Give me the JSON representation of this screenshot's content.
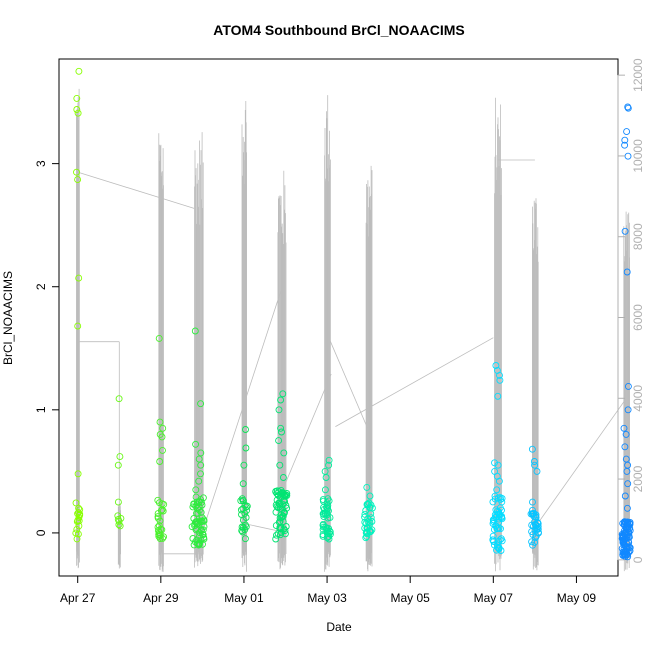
{
  "chart_data": {
    "type": "scatter",
    "title": "ATOM4 Southbound BrCl_NOAACIMS",
    "xlabel": "Date",
    "ylabel": "BrCl_NOAACIMS",
    "x_ticks": [
      {
        "day": 0,
        "label": "Apr 27"
      },
      {
        "day": 2,
        "label": "Apr 29"
      },
      {
        "day": 4,
        "label": "May 01"
      },
      {
        "day": 6,
        "label": "May 03"
      },
      {
        "day": 8,
        "label": "May 05"
      },
      {
        "day": 10,
        "label": "May 07"
      },
      {
        "day": 12,
        "label": "May 09"
      }
    ],
    "x_range_days": [
      -0.45,
      13.0
    ],
    "y_left_ticks": [
      0,
      1,
      2,
      3
    ],
    "y_left_range": [
      -0.35,
      3.85
    ],
    "y_right_ticks": [
      0,
      2000,
      4000,
      6000,
      8000,
      10000,
      12000
    ],
    "y_right_range": [
      -400,
      12400
    ],
    "right_axis_series": "altitude trace (grey)",
    "point_color_gradient": [
      "#88ff00",
      "#00e060",
      "#00ffff",
      "#1188ff"
    ],
    "clusters": [
      {
        "day": 0.0,
        "spread": 0.05,
        "n": 16,
        "low": -0.05,
        "high": 0.25,
        "extra": [
          0.48,
          1.68,
          2.07,
          2.87,
          2.93,
          3.41,
          3.44,
          3.53,
          3.75
        ],
        "alt_peak": 12000
      },
      {
        "day": 1.0,
        "spread": 0.04,
        "n": 6,
        "low": 0.0,
        "high": 0.15,
        "extra": [
          0.25,
          0.55,
          0.62,
          1.09
        ],
        "alt_peak": 1400
      },
      {
        "day": 2.0,
        "spread": 0.08,
        "n": 24,
        "low": -0.05,
        "high": 0.3,
        "extra": [
          0.58,
          0.67,
          0.78,
          0.8,
          0.85,
          0.9,
          1.58
        ],
        "alt_peak": 11000
      },
      {
        "day": 2.9,
        "spread": 0.15,
        "n": 60,
        "low": -0.1,
        "high": 0.3,
        "extra": [
          0.35,
          0.42,
          0.48,
          0.55,
          0.6,
          0.65,
          0.72,
          1.05,
          1.64
        ],
        "alt_peak": 10600
      },
      {
        "day": 4.0,
        "spread": 0.08,
        "n": 22,
        "low": -0.05,
        "high": 0.3,
        "extra": [
          0.4,
          0.55,
          0.69,
          0.84
        ],
        "alt_peak": 11900
      },
      {
        "day": 4.9,
        "spread": 0.14,
        "n": 60,
        "low": -0.05,
        "high": 0.35,
        "extra": [
          0.45,
          0.55,
          0.65,
          0.75,
          0.82,
          0.85,
          1.0,
          1.08,
          1.13
        ],
        "alt_peak": 9700
      },
      {
        "day": 6.0,
        "spread": 0.1,
        "n": 40,
        "low": -0.05,
        "high": 0.3,
        "extra": [
          0.35,
          0.45,
          0.5,
          0.55,
          0.59
        ],
        "alt_peak": 11700
      },
      {
        "day": 7.0,
        "spread": 0.1,
        "n": 32,
        "low": -0.05,
        "high": 0.25,
        "extra": [
          0.3,
          0.37
        ],
        "alt_peak": 9900
      },
      {
        "day": 10.1,
        "spread": 0.12,
        "n": 52,
        "low": -0.15,
        "high": 0.3,
        "extra": [
          0.35,
          0.42,
          0.46,
          0.5,
          0.55,
          0.57,
          1.11,
          1.24,
          1.28,
          1.32,
          1.36
        ],
        "alt_peak": 11500
      },
      {
        "day": 11.0,
        "spread": 0.1,
        "n": 32,
        "low": -0.1,
        "high": 0.2,
        "extra": [
          0.25,
          0.5,
          0.55,
          0.58,
          0.68
        ],
        "alt_peak": 9300
      },
      {
        "day": 13.2,
        "spread": 0.1,
        "n": 80,
        "low": -0.2,
        "high": 0.1,
        "extra": [
          0.2,
          0.3,
          0.4,
          0.5,
          0.55,
          0.6,
          0.7,
          0.8,
          0.85,
          1.0,
          1.19,
          2.12,
          2.45,
          3.06,
          3.15,
          3.19,
          3.26,
          3.45,
          3.46
        ],
        "alt_peak": 9000
      }
    ]
  }
}
